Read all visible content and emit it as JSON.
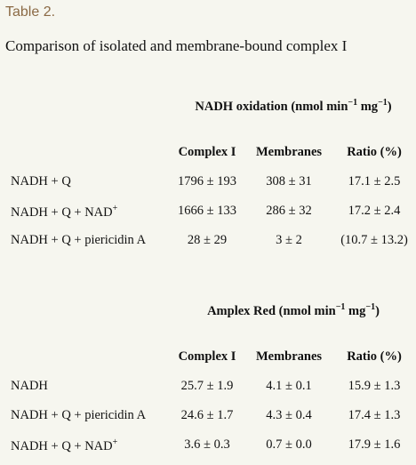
{
  "label": "Table 2.",
  "caption": "Comparison of isolated and membrane-bound complex I",
  "tables": [
    {
      "header": {
        "text": "NADH oxidation (nmol min",
        "sup1": "−1",
        "mid": " mg",
        "sup2": "−1",
        "end": ")"
      },
      "columns": [
        "Complex I",
        "Membranes",
        "Ratio (%)"
      ],
      "rows": [
        {
          "label": {
            "text": "NADH + Q"
          },
          "cells": [
            "1796 ± 193",
            "308 ± 31",
            "17.1 ± 2.5"
          ]
        },
        {
          "label": {
            "text": "NADH + Q + NAD",
            "sup": "+"
          },
          "cells": [
            "1666 ± 133",
            "286 ± 32",
            "17.2 ± 2.4"
          ]
        },
        {
          "label": {
            "text": "NADH + Q + piericidin A"
          },
          "cells": [
            "28 ± 29",
            "3 ± 2",
            "(10.7 ± 13.2)"
          ]
        }
      ]
    },
    {
      "header": {
        "text": "Amplex Red (nmol min",
        "sup1": "−1",
        "mid": " mg",
        "sup2": "−1",
        "end": ")"
      },
      "columns": [
        "Complex I",
        "Membranes",
        "Ratio (%)"
      ],
      "rows": [
        {
          "label": {
            "text": "NADH"
          },
          "cells": [
            "25.7 ± 1.9",
            "4.1 ± 0.1",
            "15.9 ± 1.3"
          ]
        },
        {
          "label": {
            "text": "NADH + Q + piericidin A"
          },
          "cells": [
            "24.6 ± 1.7",
            "4.3 ± 0.4",
            "17.4 ± 1.3"
          ]
        },
        {
          "label": {
            "text": "NADH + Q + NAD",
            "sup": "+"
          },
          "cells": [
            "3.6 ± 0.3",
            "0.7 ± 0.0",
            "17.9 ± 1.6"
          ]
        }
      ]
    }
  ]
}
